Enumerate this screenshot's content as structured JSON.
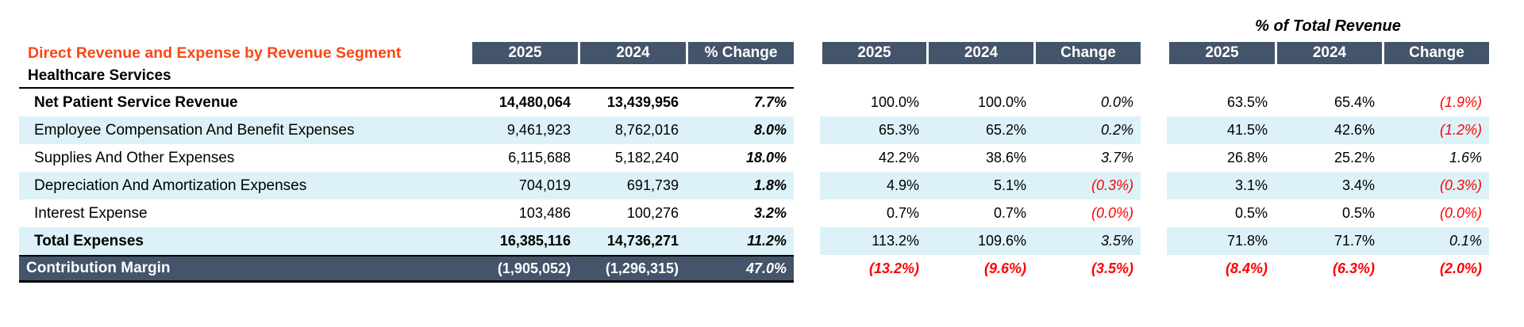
{
  "title": "Direct Revenue and Expense by Revenue Segment",
  "section": "Healthcare Services",
  "pct_title": "% of Total Revenue",
  "colors": {
    "header_bg": "#44546A",
    "title_accent": "#FA4616",
    "row_alt_bg": "#DCF2F8",
    "negative": "#FF0000"
  },
  "left_table": {
    "headers": [
      "2025",
      "2024",
      "% Change"
    ],
    "rows": [
      {
        "label": "Net Patient Service Revenue",
        "v2025": "14,480,064",
        "v2024": "13,439,956",
        "change": "7.7%"
      },
      {
        "label": "Employee Compensation And Benefit Expenses",
        "v2025": "9,461,923",
        "v2024": "8,762,016",
        "change": "8.0%"
      },
      {
        "label": "Supplies And Other Expenses",
        "v2025": "6,115,688",
        "v2024": "5,182,240",
        "change": "18.0%"
      },
      {
        "label": "Depreciation And Amortization Expenses",
        "v2025": "704,019",
        "v2024": "691,739",
        "change": "1.8%"
      },
      {
        "label": "Interest Expense",
        "v2025": "103,486",
        "v2024": "100,276",
        "change": "3.2%"
      },
      {
        "label": "Total Expenses",
        "v2025": "16,385,116",
        "v2024": "14,736,271",
        "change": "11.2%"
      },
      {
        "label": "Contribution Margin",
        "v2025": "(1,905,052)",
        "v2024": "(1,296,315)",
        "change": "47.0%"
      }
    ]
  },
  "mid_table": {
    "headers": [
      "2025",
      "2024",
      "Change"
    ],
    "rows": [
      {
        "v2025": "100.0%",
        "v2024": "100.0%",
        "change": "0.0%"
      },
      {
        "v2025": "65.3%",
        "v2024": "65.2%",
        "change": "0.2%"
      },
      {
        "v2025": "42.2%",
        "v2024": "38.6%",
        "change": "3.7%"
      },
      {
        "v2025": "4.9%",
        "v2024": "5.1%",
        "change": "(0.3%)"
      },
      {
        "v2025": "0.7%",
        "v2024": "0.7%",
        "change": "(0.0%)"
      },
      {
        "v2025": "113.2%",
        "v2024": "109.6%",
        "change": "3.5%"
      },
      {
        "v2025": "(13.2%)",
        "v2024": "(9.6%)",
        "change": "(3.5%)"
      }
    ]
  },
  "right_table": {
    "headers": [
      "2025",
      "2024",
      "Change"
    ],
    "rows": [
      {
        "v2025": "63.5%",
        "v2024": "65.4%",
        "change": "(1.9%)"
      },
      {
        "v2025": "41.5%",
        "v2024": "42.6%",
        "change": "(1.2%)"
      },
      {
        "v2025": "26.8%",
        "v2024": "25.2%",
        "change": "1.6%"
      },
      {
        "v2025": "3.1%",
        "v2024": "3.4%",
        "change": "(0.3%)"
      },
      {
        "v2025": "0.5%",
        "v2024": "0.5%",
        "change": "(0.0%)"
      },
      {
        "v2025": "71.8%",
        "v2024": "71.7%",
        "change": "0.1%"
      },
      {
        "v2025": "(8.4%)",
        "v2024": "(6.3%)",
        "change": "(2.0%)"
      }
    ]
  }
}
